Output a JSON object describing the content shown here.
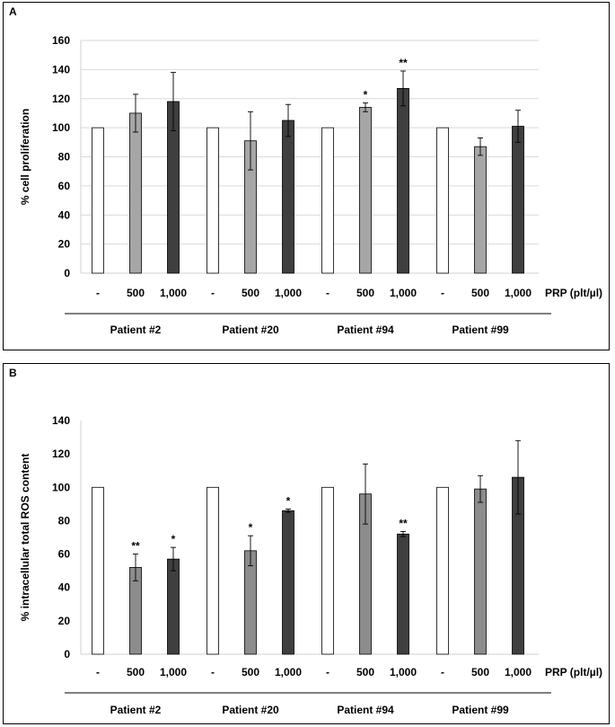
{
  "chart_data": [
    {
      "type": "bar",
      "panel_label": "A",
      "ylabel": "% cell proliferation",
      "ylim": [
        0,
        160
      ],
      "yticks": [
        0,
        20,
        40,
        60,
        80,
        100,
        120,
        140,
        160
      ],
      "grid": true,
      "x_unit_label": "PRP (plt/µl)",
      "bar_labels": [
        "-",
        "500",
        "1,000"
      ],
      "groups": [
        {
          "name": "Patient #2",
          "values": [
            100,
            110,
            118
          ],
          "errors": [
            0,
            13,
            20
          ],
          "sig": [
            "",
            "",
            ""
          ]
        },
        {
          "name": "Patient #20",
          "values": [
            100,
            91,
            105
          ],
          "errors": [
            0,
            20,
            11
          ],
          "sig": [
            "",
            "",
            ""
          ]
        },
        {
          "name": "Patient #94",
          "values": [
            100,
            114,
            127
          ],
          "errors": [
            0,
            3,
            12
          ],
          "sig": [
            "",
            "*",
            "**"
          ]
        },
        {
          "name": "Patient #99",
          "values": [
            100,
            87,
            101
          ],
          "errors": [
            0,
            6,
            11
          ],
          "sig": [
            "",
            "",
            ""
          ]
        }
      ],
      "colors": [
        "#ffffff",
        "#a6a6a6",
        "#3f3f3f"
      ]
    },
    {
      "type": "bar",
      "panel_label": "B",
      "ylabel": "% intracellular total ROS content",
      "ylim": [
        0,
        140
      ],
      "yticks": [
        0,
        20,
        40,
        60,
        80,
        100,
        120,
        140
      ],
      "grid": false,
      "x_unit_label": "PRP (plt/µl)",
      "bar_labels": [
        "-",
        "500",
        "1,000"
      ],
      "groups": [
        {
          "name": "Patient #2",
          "values": [
            100,
            52,
            57
          ],
          "errors": [
            0,
            8,
            7
          ],
          "sig": [
            "",
            "**",
            "*"
          ]
        },
        {
          "name": "Patient #20",
          "values": [
            100,
            62,
            86
          ],
          "errors": [
            0,
            9,
            1
          ],
          "sig": [
            "",
            "*",
            "*"
          ]
        },
        {
          "name": "Patient #94",
          "values": [
            100,
            96,
            72
          ],
          "errors": [
            0,
            18,
            1.5
          ],
          "sig": [
            "",
            "",
            "**"
          ]
        },
        {
          "name": "Patient #99",
          "values": [
            100,
            99,
            106
          ],
          "errors": [
            0,
            8,
            22
          ],
          "sig": [
            "",
            "",
            ""
          ]
        }
      ],
      "colors": [
        "#ffffff",
        "#8c8c8c",
        "#3f3f3f"
      ]
    }
  ]
}
